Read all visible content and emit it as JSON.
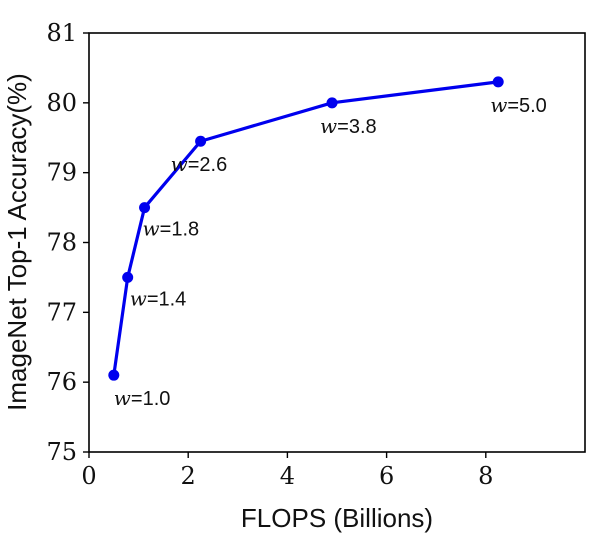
{
  "chart_data": {
    "type": "line",
    "title": "",
    "xlabel": "FLOPS (Billions)",
    "ylabel": "ImageNet Top-1 Accuracy(%)",
    "xlim": [
      0,
      10
    ],
    "ylim": [
      75,
      81
    ],
    "xticks": [
      0,
      2,
      4,
      6,
      8
    ],
    "yticks": [
      75,
      76,
      77,
      78,
      79,
      80,
      81
    ],
    "grid": false,
    "line_color": "#0000ee",
    "series": [
      {
        "x": [
          0.5,
          0.78,
          1.12,
          2.25,
          4.9,
          8.25
        ],
        "y": [
          76.1,
          77.5,
          78.5,
          79.45,
          80.0,
          80.3
        ],
        "point_labels": [
          "w=1.0",
          "w=1.4",
          "w=1.8",
          "w=2.6",
          "w=3.8",
          "w=5.0"
        ]
      }
    ]
  }
}
